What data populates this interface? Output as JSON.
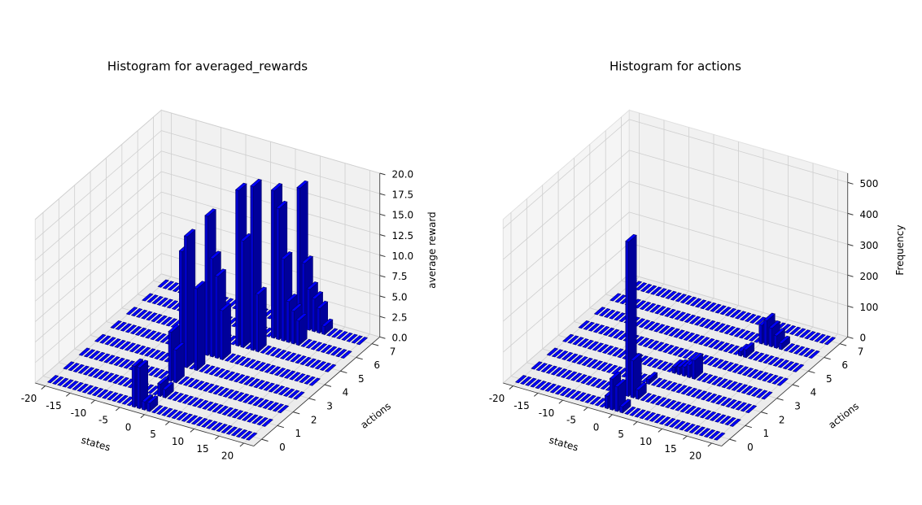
{
  "chart_data": [
    {
      "type": "bar3d",
      "title": "Histogram for averaged_rewards",
      "xlabel": "states",
      "ylabel": "actions",
      "zlabel": "average reward",
      "color": "#0000ff",
      "x": [
        -20,
        -19,
        -18,
        -17,
        -16,
        -15,
        -14,
        -13,
        -12,
        -11,
        -10,
        -9,
        -8,
        -7,
        -6,
        -5,
        -4,
        -3,
        -2,
        -1,
        0,
        1,
        2,
        3,
        4,
        5,
        6,
        7,
        8,
        9,
        10,
        11,
        12,
        13,
        14,
        15,
        16,
        17,
        18,
        19,
        20
      ],
      "y": [
        0,
        1,
        2,
        3,
        4,
        5,
        6,
        7
      ],
      "values": [
        [
          0,
          0,
          0,
          0,
          0,
          0,
          0,
          0,
          0,
          0,
          0,
          0,
          0,
          0,
          0,
          0,
          0,
          5,
          5,
          1,
          1,
          0,
          0,
          0,
          0,
          0,
          0,
          0,
          0,
          0,
          0,
          0,
          0,
          0,
          0,
          0,
          0,
          0,
          0,
          0,
          0
        ],
        [
          0,
          0,
          0,
          0,
          0,
          0,
          0,
          0,
          0,
          0,
          0,
          0,
          0,
          0,
          0,
          0,
          0,
          0,
          0,
          1.5,
          1,
          0,
          0,
          0,
          0,
          0,
          0,
          0,
          0,
          0,
          0,
          0,
          0,
          0,
          0,
          0,
          0,
          0,
          0,
          0,
          0
        ],
        [
          0,
          0,
          0,
          0,
          0,
          0,
          0,
          0,
          0,
          0,
          0,
          0,
          0,
          0,
          0,
          0,
          0,
          0,
          6,
          4,
          0,
          0,
          0,
          0,
          0,
          0,
          0,
          0,
          0,
          0,
          0,
          0,
          0,
          0,
          0,
          0,
          0,
          0,
          0,
          0,
          0
        ],
        [
          0,
          0,
          0,
          0,
          0,
          0,
          0,
          0,
          0,
          0,
          0,
          0,
          0,
          0,
          0,
          0,
          0,
          14,
          16,
          0,
          10,
          0,
          0,
          0,
          0,
          0,
          0,
          0,
          0,
          0,
          0,
          0,
          0,
          0,
          0,
          0,
          0,
          0,
          0,
          0,
          0
        ],
        [
          0,
          0,
          0,
          0,
          0,
          0,
          0,
          0,
          0,
          0,
          0,
          0,
          0,
          0,
          0,
          0,
          0,
          0,
          0,
          17,
          12,
          10,
          6,
          0,
          0,
          0,
          0,
          0,
          0,
          0,
          0,
          0,
          0,
          0,
          0,
          0,
          0,
          0,
          0,
          0,
          0
        ],
        [
          0,
          0,
          0,
          0,
          0,
          0,
          0,
          0,
          0,
          0,
          0,
          0,
          0,
          0,
          0,
          0,
          0,
          0,
          0,
          0,
          0,
          0,
          19,
          13,
          0,
          20,
          7,
          0,
          0,
          0,
          0,
          0,
          0,
          0,
          0,
          0,
          0,
          0,
          0,
          0,
          0
        ],
        [
          0,
          0,
          0,
          0,
          0,
          0,
          0,
          0,
          0,
          0,
          0,
          0,
          0,
          0,
          0,
          0,
          0,
          0,
          0,
          0,
          0,
          0,
          0,
          0,
          0,
          0,
          18,
          16,
          10,
          5,
          4,
          3,
          0,
          0,
          0,
          0,
          0,
          0,
          0,
          0,
          0
        ],
        [
          0,
          0,
          0,
          0,
          0,
          0,
          0,
          0,
          0,
          0,
          0,
          0,
          0,
          0,
          0,
          0,
          0,
          0,
          0,
          0,
          0,
          0,
          0,
          0,
          0,
          0,
          0,
          0,
          17,
          8,
          5,
          4,
          3,
          1,
          0,
          0,
          0,
          0,
          0,
          0,
          0
        ]
      ],
      "xlim": [
        -22,
        22
      ],
      "ylim": [
        -0.5,
        7.5
      ],
      "zlim": [
        0,
        20
      ],
      "xticks": [
        -20,
        -15,
        -10,
        -5,
        0,
        5,
        10,
        15,
        20
      ],
      "yticks": [
        0,
        1,
        2,
        3,
        4,
        5,
        6,
        7
      ],
      "zticks": [
        {
          "value": 0,
          "label": "0.0"
        },
        {
          "value": 2.5,
          "label": "2.5"
        },
        {
          "value": 5,
          "label": "5.0"
        },
        {
          "value": 7.5,
          "label": "7.5"
        },
        {
          "value": 10,
          "label": "10.0"
        },
        {
          "value": 12.5,
          "label": "12.5"
        },
        {
          "value": 15,
          "label": "15.0"
        },
        {
          "value": 17.5,
          "label": "17.5"
        },
        {
          "value": 20,
          "label": "20.0"
        }
      ],
      "grid": true
    },
    {
      "type": "bar3d",
      "title": "Histogram for actions",
      "xlabel": "states",
      "ylabel": "actions",
      "zlabel": "Frequency",
      "color": "#0000ff",
      "x": [
        -20,
        -19,
        -18,
        -17,
        -16,
        -15,
        -14,
        -13,
        -12,
        -11,
        -10,
        -9,
        -8,
        -7,
        -6,
        -5,
        -4,
        -3,
        -2,
        -1,
        0,
        1,
        2,
        3,
        4,
        5,
        6,
        7,
        8,
        9,
        10,
        11,
        12,
        13,
        14,
        15,
        16,
        17,
        18,
        19,
        20
      ],
      "y": [
        0,
        1,
        2,
        3,
        4,
        5,
        6,
        7
      ],
      "values": [
        [
          0,
          0,
          0,
          0,
          0,
          0,
          0,
          0,
          0,
          0,
          0,
          0,
          0,
          0,
          0,
          0,
          0,
          0,
          40,
          100,
          80,
          20,
          0,
          0,
          0,
          0,
          0,
          0,
          0,
          0,
          0,
          0,
          0,
          0,
          0,
          0,
          0,
          0,
          0,
          0,
          0
        ],
        [
          0,
          0,
          0,
          0,
          0,
          0,
          0,
          0,
          0,
          0,
          0,
          0,
          0,
          0,
          0,
          0,
          0,
          0,
          0,
          500,
          120,
          30,
          0,
          0,
          0,
          0,
          0,
          0,
          0,
          0,
          0,
          0,
          0,
          0,
          0,
          0,
          0,
          0,
          0,
          0,
          0
        ],
        [
          0,
          0,
          0,
          0,
          0,
          0,
          0,
          0,
          0,
          0,
          0,
          0,
          0,
          0,
          0,
          0,
          0,
          0,
          0,
          0,
          15,
          0,
          0,
          0,
          0,
          0,
          0,
          0,
          0,
          0,
          0,
          0,
          0,
          0,
          0,
          0,
          0,
          0,
          0,
          0,
          0
        ],
        [
          0,
          0,
          0,
          0,
          0,
          0,
          0,
          0,
          0,
          0,
          0,
          0,
          0,
          0,
          0,
          0,
          0,
          0,
          0,
          0,
          0,
          0,
          20,
          25,
          30,
          40,
          60,
          0,
          0,
          0,
          0,
          0,
          0,
          0,
          0,
          0,
          0,
          0,
          0,
          0,
          0
        ],
        [
          0,
          0,
          0,
          0,
          0,
          0,
          0,
          0,
          0,
          0,
          0,
          0,
          0,
          0,
          0,
          0,
          0,
          0,
          0,
          0,
          0,
          0,
          0,
          0,
          0,
          0,
          0,
          0,
          0,
          0,
          0,
          0,
          0,
          0,
          0,
          0,
          0,
          0,
          0,
          0,
          0
        ],
        [
          0,
          0,
          0,
          0,
          0,
          0,
          0,
          0,
          0,
          0,
          0,
          0,
          0,
          0,
          0,
          0,
          0,
          0,
          0,
          0,
          0,
          0,
          0,
          0,
          0,
          0,
          0,
          0,
          0,
          15,
          25,
          0,
          0,
          0,
          0,
          0,
          0,
          0,
          0,
          0,
          0
        ],
        [
          0,
          0,
          0,
          0,
          0,
          0,
          0,
          0,
          0,
          0,
          0,
          0,
          0,
          0,
          0,
          0,
          0,
          0,
          0,
          0,
          0,
          0,
          0,
          0,
          0,
          0,
          0,
          0,
          0,
          0,
          60,
          80,
          60,
          40,
          20,
          0,
          0,
          0,
          0,
          0,
          0
        ],
        [
          0,
          0,
          0,
          0,
          0,
          0,
          0,
          0,
          0,
          0,
          0,
          0,
          0,
          0,
          0,
          0,
          0,
          0,
          0,
          0,
          0,
          0,
          0,
          0,
          0,
          0,
          0,
          0,
          0,
          0,
          0,
          0,
          0,
          0,
          0,
          0,
          0,
          0,
          0,
          0,
          0
        ]
      ],
      "xlim": [
        -22,
        22
      ],
      "ylim": [
        -0.5,
        7.5
      ],
      "zlim": [
        0,
        530
      ],
      "xticks": [
        -20,
        -15,
        -10,
        -5,
        0,
        5,
        10,
        15,
        20
      ],
      "yticks": [
        0,
        1,
        2,
        3,
        4,
        5,
        6,
        7
      ],
      "zticks": [
        0,
        100,
        200,
        300,
        400,
        500
      ],
      "grid": true
    }
  ]
}
